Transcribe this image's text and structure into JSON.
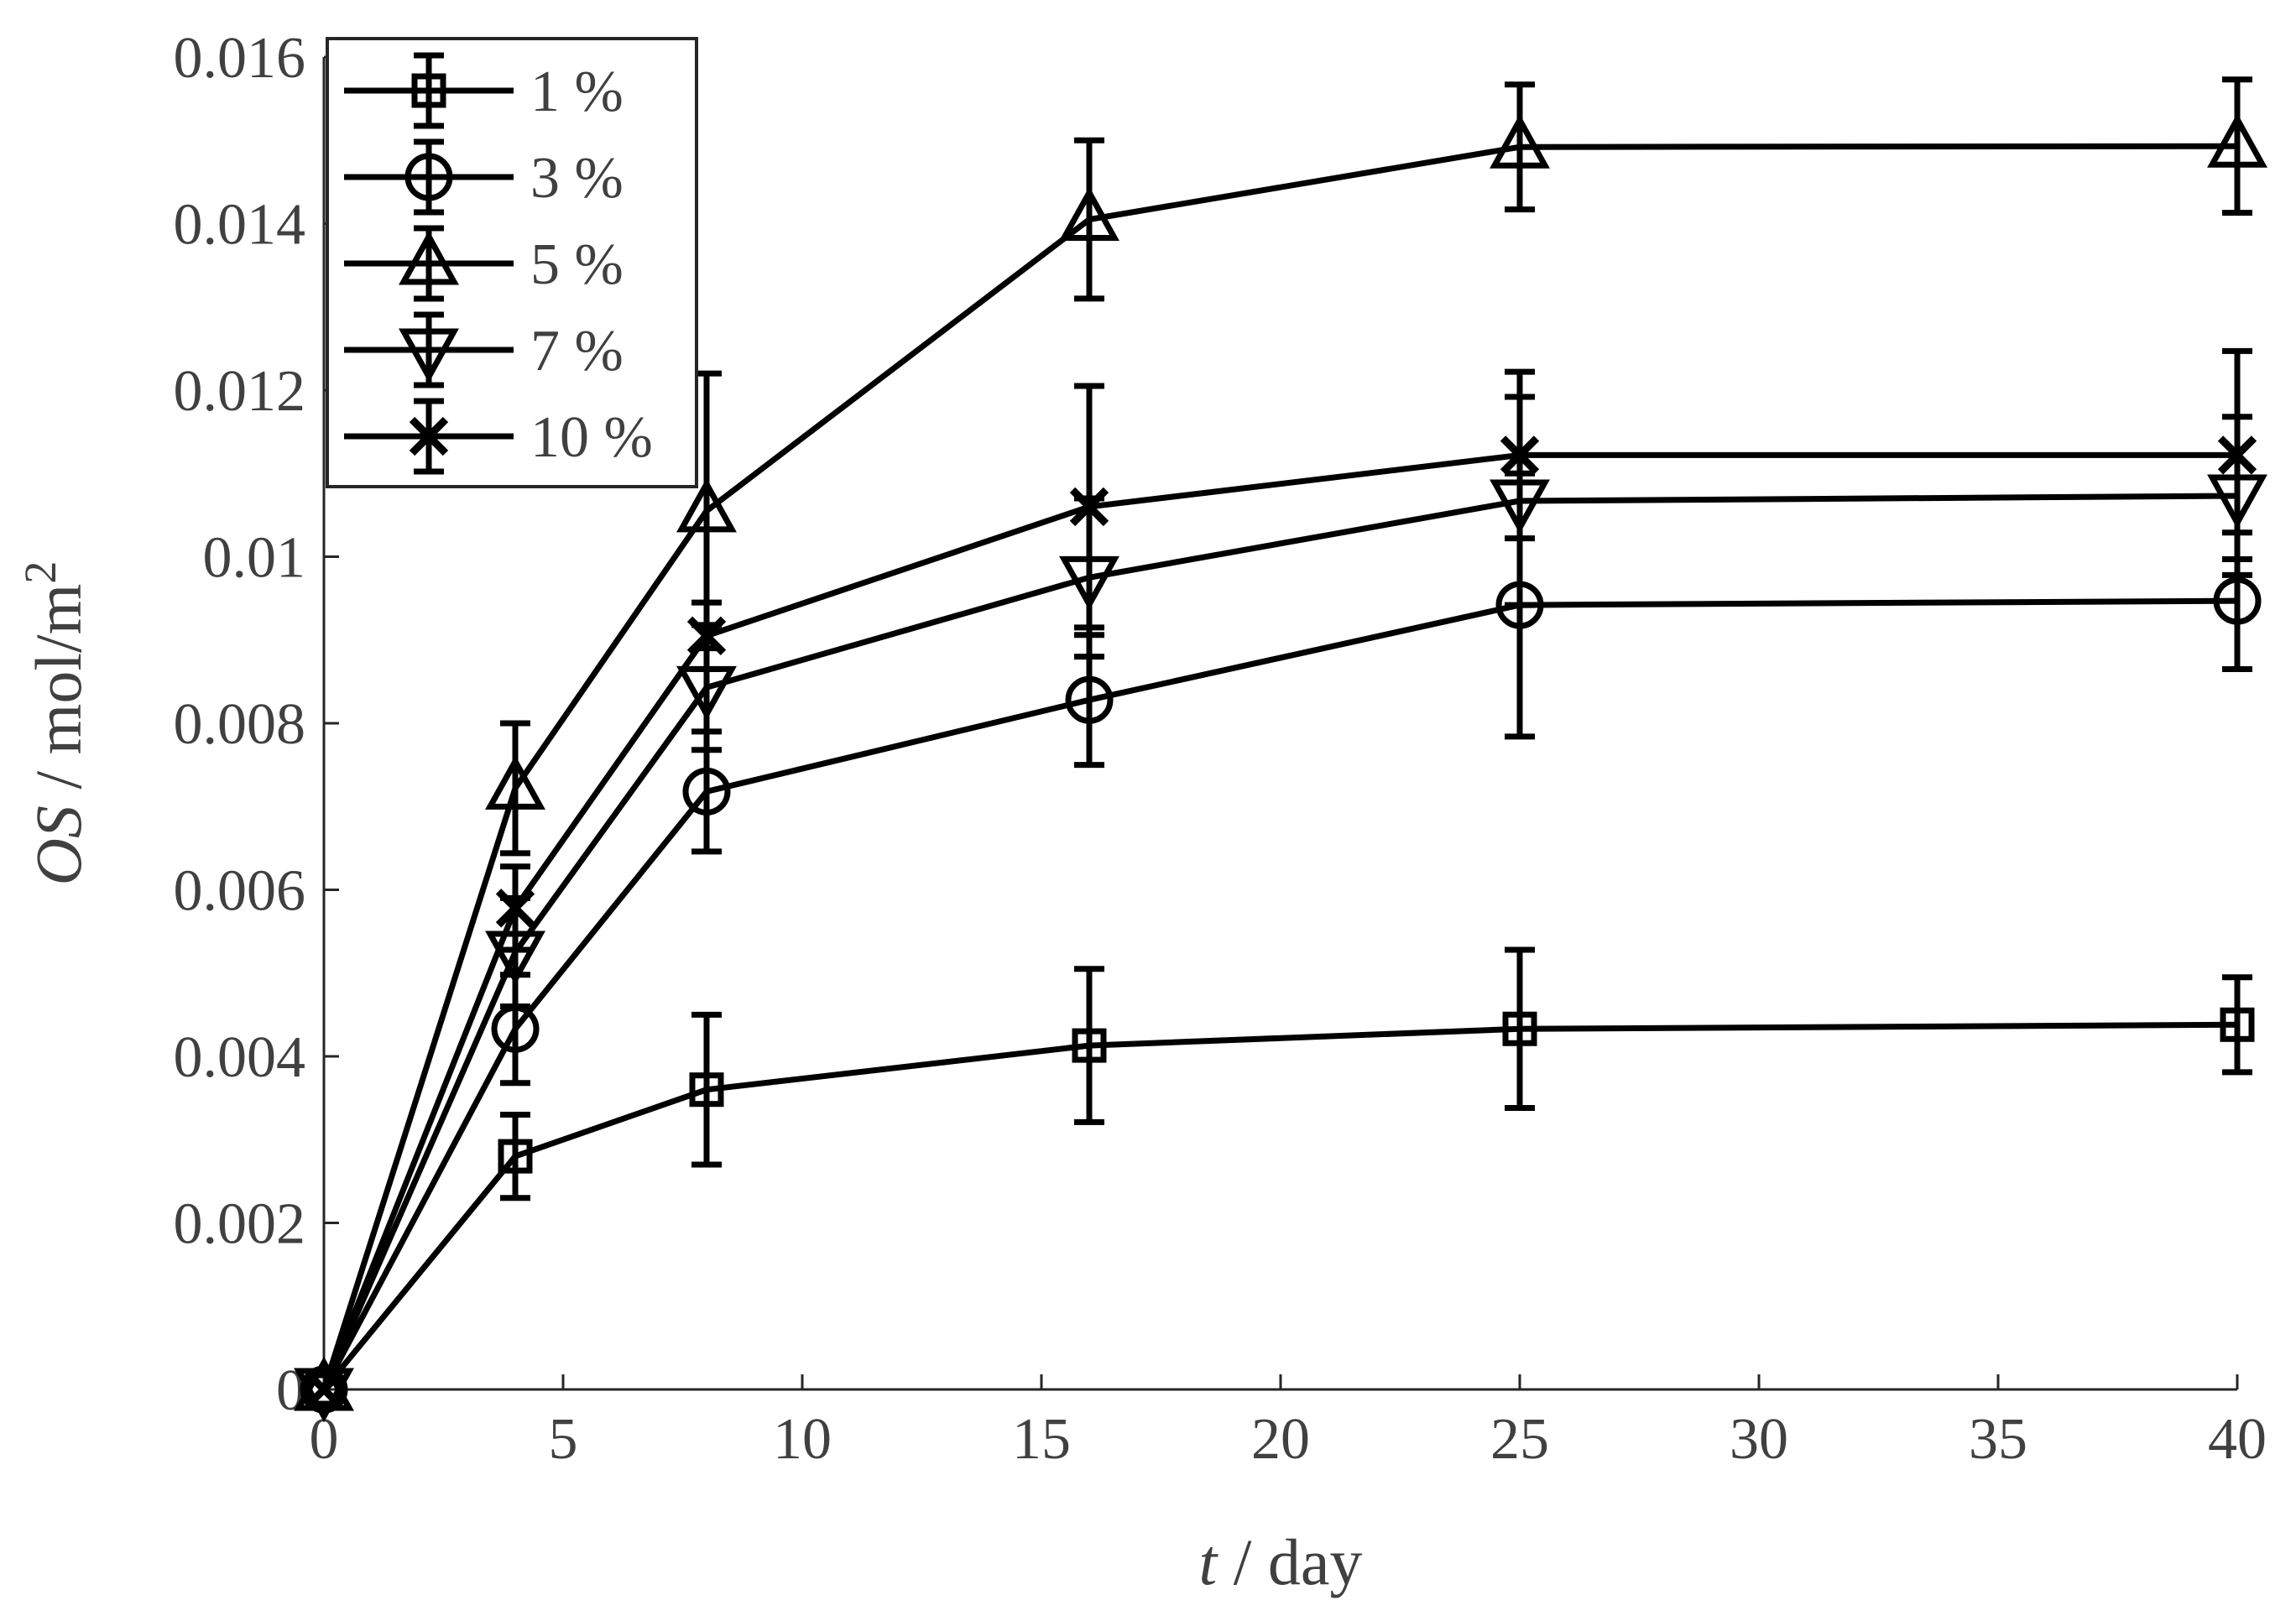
{
  "colors": {
    "line": "#000000",
    "text": "#404040",
    "background": "#ffffff"
  },
  "chart_data": {
    "type": "line",
    "title": "",
    "xlabel": {
      "var": "t",
      "rest": " / day"
    },
    "ylabel": {
      "var": "OS",
      "rest": " / mol/m",
      "sup": "2"
    },
    "xlim": [
      0,
      40
    ],
    "ylim": [
      0,
      0.016
    ],
    "xticks": [
      0,
      5,
      10,
      15,
      20,
      25,
      30,
      35,
      40
    ],
    "xtick_labels": [
      "0",
      "5",
      "10",
      "15",
      "20",
      "25",
      "30",
      "35",
      "40"
    ],
    "yticks": [
      0,
      0.002,
      0.004,
      0.006,
      0.008,
      0.01,
      0.012,
      0.014,
      0.016
    ],
    "ytick_labels": [
      "0",
      "0.002",
      "0.004",
      "0.006",
      "0.008",
      "0.01",
      "0.012",
      "0.014",
      "0.016"
    ],
    "grid": false,
    "legend_position": "top-left",
    "x": [
      0,
      4,
      8,
      16,
      25,
      40
    ],
    "series": [
      {
        "name": "1 %",
        "marker": "square",
        "values": [
          0,
          0.0028,
          0.0036,
          0.00413,
          0.00433,
          0.00438
        ],
        "errors": [
          0,
          0.0005,
          0.0009,
          0.00092,
          0.00095,
          0.00057
        ]
      },
      {
        "name": "3 %",
        "marker": "circle",
        "values": [
          0,
          0.00433,
          0.00718,
          0.00828,
          0.00942,
          0.00947
        ],
        "errors": [
          0,
          0.00065,
          0.00072,
          0.00078,
          0.00158,
          0.00082
        ]
      },
      {
        "name": "5 %",
        "marker": "triangle-up",
        "values": [
          0,
          0.00722,
          0.01055,
          0.01405,
          0.01492,
          0.01493
        ],
        "errors": [
          0,
          0.00078,
          0.00165,
          0.00095,
          0.00075,
          0.0008
        ]
      },
      {
        "name": "7 %",
        "marker": "triangle-down",
        "values": [
          0,
          0.00525,
          0.00843,
          0.00975,
          0.01067,
          0.01073
        ],
        "errors": [
          0,
          0.00065,
          0.00075,
          0.00095,
          0.00125,
          0.00095
        ]
      },
      {
        "name": "10 %",
        "marker": "x",
        "values": [
          0,
          0.00578,
          0.00905,
          0.0106,
          0.01122,
          0.01122
        ],
        "errors": [
          0,
          0.0005,
          0.0004,
          0.00145,
          0.001,
          0.00125
        ]
      }
    ]
  }
}
